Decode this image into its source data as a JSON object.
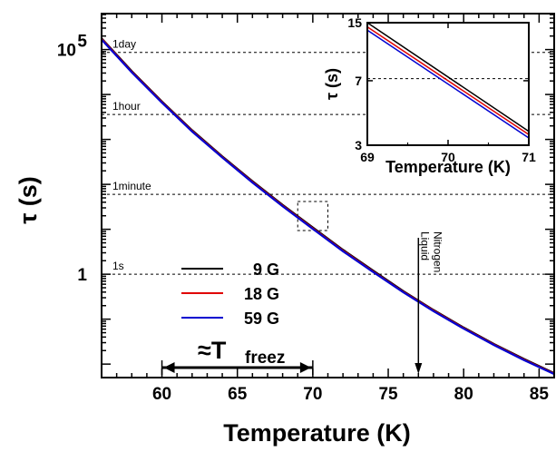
{
  "chart_data": [
    {
      "type": "line",
      "xlabel": "Temperature (K)",
      "ylabel": "τ (s)",
      "xlim": [
        56,
        86
      ],
      "ylim_log10": [
        -2.3,
        5.8
      ],
      "yscale": "log",
      "xticks": [
        60,
        65,
        70,
        75,
        80,
        85
      ],
      "xtick_labels": [
        "60",
        "65",
        "70",
        "75",
        "80",
        "85"
      ],
      "yticks_major": [
        1,
        100000
      ],
      "ytick_major_labels": [
        "1",
        "10^5"
      ],
      "reference_lines": [
        {
          "label": "1day",
          "value_s": 86400
        },
        {
          "label": "1hour",
          "value_s": 3600
        },
        {
          "label": "1minute",
          "value_s": 60
        },
        {
          "label": "1s",
          "value_s": 1
        }
      ],
      "legend": {
        "placement": "bottom-left",
        "entries": [
          {
            "name": "9 G",
            "color": "#000000"
          },
          {
            "name": "18 G",
            "color": "#e00000"
          },
          {
            "name": "59 G",
            "color": "#0000d0"
          }
        ]
      },
      "series": [
        {
          "name": "9 G",
          "color": "#000000",
          "x": [
            56,
            58,
            60,
            62,
            64,
            66,
            68,
            70,
            72,
            74,
            76,
            78,
            80,
            82,
            84,
            86
          ],
          "y": [
            177828,
            33000,
            7000,
            1600,
            420,
            118,
            35,
            11,
            3.5,
            1.2,
            0.42,
            0.16,
            0.065,
            0.028,
            0.013,
            0.0063
          ]
        },
        {
          "name": "18 G",
          "color": "#e00000",
          "x": [
            56,
            58,
            60,
            62,
            64,
            66,
            68,
            70,
            72,
            74,
            76,
            78,
            80,
            82,
            84,
            86
          ],
          "y": [
            172000,
            31900,
            6760,
            1545,
            405,
            113,
            33.5,
            10.5,
            3.35,
            1.15,
            0.405,
            0.155,
            0.063,
            0.0272,
            0.0126,
            0.0061
          ]
        },
        {
          "name": "59 G",
          "color": "#0000d0",
          "x": [
            56,
            58,
            60,
            62,
            64,
            66,
            68,
            70,
            72,
            74,
            76,
            78,
            80,
            82,
            84,
            86
          ],
          "y": [
            167000,
            31000,
            6580,
            1500,
            394,
            110,
            32.5,
            10.2,
            3.25,
            1.12,
            0.395,
            0.151,
            0.0615,
            0.0266,
            0.0123,
            0.006
          ]
        }
      ],
      "annotations": [
        {
          "text": "Liquid Nitrogen",
          "x": 77,
          "arrow": "down"
        },
        {
          "text": "≈T",
          "subscript": "freez",
          "x_range": [
            60,
            70
          ],
          "arrow": "double-headed"
        },
        {
          "text": "",
          "type": "dashed-box",
          "x_range": [
            69,
            71
          ],
          "note": "zoom region for inset"
        }
      ]
    },
    {
      "type": "line",
      "xlabel": "Temperature (K)",
      "ylabel": "τ (s)",
      "xlim": [
        69,
        71
      ],
      "ylim": [
        3,
        15
      ],
      "yscale": "log",
      "xticks": [
        69,
        70,
        71
      ],
      "xtick_labels": [
        "69",
        "70",
        "71"
      ],
      "yticks": [
        3,
        7,
        15
      ],
      "ytick_labels": [
        "3",
        "7",
        "15"
      ],
      "reference_lines": [
        {
          "label": "",
          "value_s": 7.2
        }
      ],
      "series": [
        {
          "name": "9 G",
          "color": "#000000",
          "x": [
            69,
            71
          ],
          "y": [
            15,
            3.6
          ]
        },
        {
          "name": "18 G",
          "color": "#e00000",
          "x": [
            69,
            71
          ],
          "y": [
            14.2,
            3.45
          ]
        },
        {
          "name": "59 G",
          "color": "#0000d0",
          "x": [
            69,
            71
          ],
          "y": [
            13.6,
            3.3
          ]
        }
      ]
    }
  ]
}
